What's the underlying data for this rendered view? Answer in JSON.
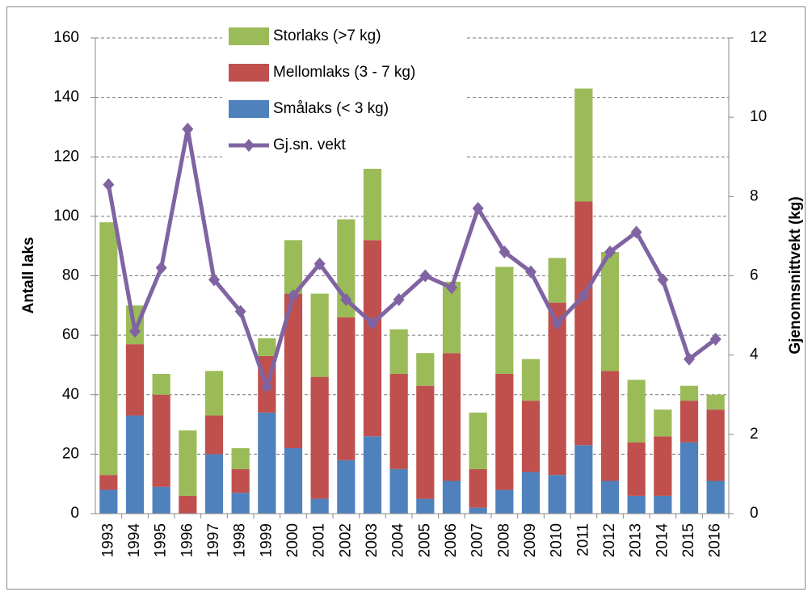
{
  "chart_data": {
    "type": "bar",
    "stacked": true,
    "y_label": "Antall laks",
    "y2_label": "Gjenonnsnittvekt (kg)",
    "categories": [
      "1993",
      "1994",
      "1995",
      "1996",
      "1997",
      "1998",
      "1999",
      "2000",
      "2001",
      "2002",
      "2003",
      "2004",
      "2005",
      "2006",
      "2007",
      "2008",
      "2009",
      "2010",
      "2011",
      "2012",
      "2013",
      "2014",
      "2015",
      "2016"
    ],
    "series": [
      {
        "name": "Smålaks (< 3 kg)",
        "color": "#4f81bd",
        "type": "bar",
        "values": [
          8,
          33,
          9,
          0,
          20,
          7,
          34,
          22,
          5,
          18,
          26,
          15,
          5,
          11,
          2,
          8,
          14,
          13,
          23,
          11,
          6,
          6,
          24,
          11
        ]
      },
      {
        "name": "Mellomlaks (3 - 7 kg)",
        "color": "#c0504d",
        "type": "bar",
        "values": [
          5,
          24,
          31,
          6,
          13,
          8,
          19,
          52,
          41,
          48,
          66,
          32,
          38,
          43,
          13,
          39,
          24,
          58,
          82,
          37,
          18,
          20,
          14,
          24
        ]
      },
      {
        "name": "Storlaks (>7 kg)",
        "color": "#9bbb59",
        "type": "bar",
        "values": [
          85,
          13,
          7,
          22,
          15,
          7,
          6,
          18,
          28,
          33,
          24,
          15,
          11,
          24,
          19,
          36,
          14,
          15,
          38,
          40,
          21,
          9,
          5,
          5
        ]
      },
      {
        "name": "Gj.sn. vekt",
        "color": "#8064a2",
        "type": "line",
        "axis": "y2",
        "values": [
          8.3,
          4.6,
          6.2,
          9.7,
          5.9,
          5.1,
          3.2,
          5.5,
          6.3,
          5.4,
          4.8,
          5.4,
          6.0,
          5.7,
          7.7,
          6.6,
          6.1,
          4.8,
          5.5,
          6.6,
          7.1,
          5.9,
          3.9,
          4.4
        ]
      }
    ],
    "ylim": [
      0,
      160
    ],
    "yticks": [
      0,
      20,
      40,
      60,
      80,
      100,
      120,
      140,
      160
    ],
    "y2lim": [
      0,
      12
    ],
    "y2ticks": [
      0,
      2,
      4,
      6,
      8,
      10,
      12
    ],
    "grid": true
  }
}
